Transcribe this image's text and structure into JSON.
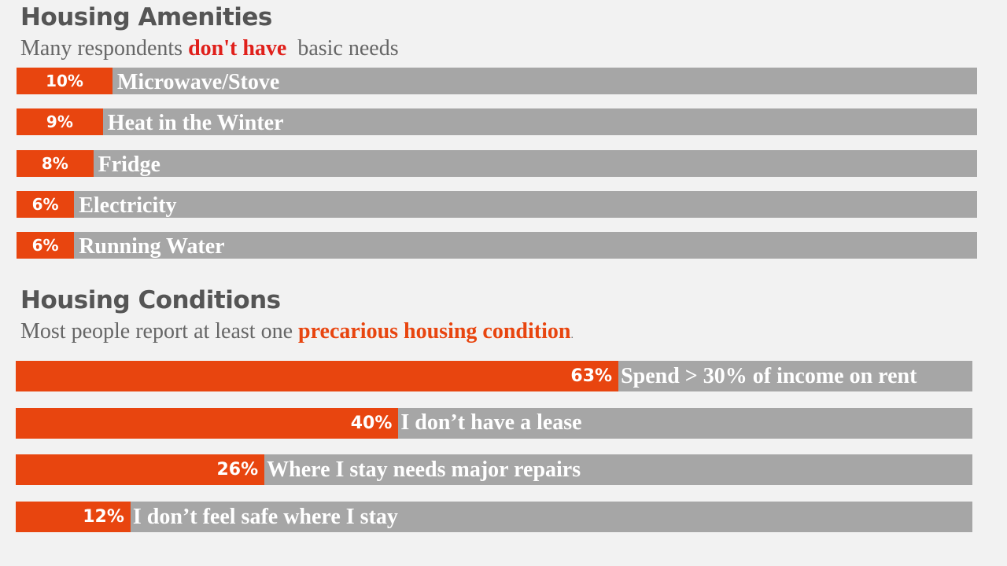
{
  "amenities": {
    "title": "Housing Amenities",
    "subtitle_pre": "Many respondents ",
    "subtitle_highlight": "don't have",
    "subtitle_post": "  basic needs",
    "highlight_color": "#e0201b"
  },
  "conditions": {
    "title": "Housing Conditions",
    "subtitle_pre": "Most people report at least one ",
    "subtitle_highlight": "precarious housing condition",
    "subtitle_post": ".",
    "highlight_color": "#e8450f"
  },
  "colors": {
    "fill": "#e8450f",
    "track": "#a6a6a6",
    "title": "#555555",
    "subtitle": "#666666",
    "background": "#f2f2f2"
  },
  "chart_data": [
    {
      "type": "bar",
      "orientation": "horizontal",
      "title": "Housing Amenities",
      "categories": [
        "Microwave/Stove",
        "Heat in the Winter",
        "Fridge",
        "Electricity",
        "Running Water"
      ],
      "values": [
        10,
        9,
        8,
        6,
        6
      ],
      "labels": [
        "10%",
        "9%",
        "8%",
        "6%",
        "6%"
      ],
      "xlim": [
        0,
        100
      ],
      "grid": false
    },
    {
      "type": "bar",
      "orientation": "horizontal",
      "title": "Housing Conditions",
      "categories": [
        "Spend > 30% of income on rent",
        "I don’t have a lease",
        "Where I stay needs major repairs",
        "I don’t feel safe where I stay"
      ],
      "values": [
        63,
        40,
        26,
        12
      ],
      "labels": [
        "63%",
        "40%",
        "26%",
        "12%"
      ],
      "xlim": [
        0,
        100
      ],
      "grid": false
    }
  ]
}
